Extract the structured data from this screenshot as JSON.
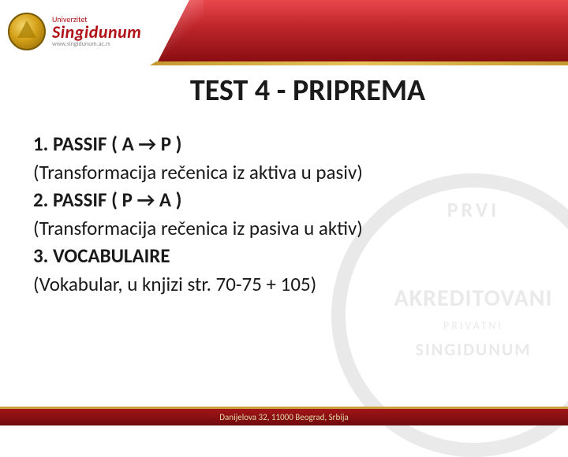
{
  "header": {
    "logo": {
      "university_label": "Univerzitet",
      "name": "Singidunum",
      "url": "www.singidunum.ac.rs"
    }
  },
  "title": "TEST 4 - PRIPREMA",
  "content": {
    "lines": [
      {
        "text": "1. PASSIF  ( A → P )",
        "bold": true
      },
      {
        "text": "(Transformacija rečenica iz aktiva u pasiv)",
        "bold": false
      },
      {
        "text": "2. PASSIF  ( P → A )",
        "bold": true
      },
      {
        "text": "(Transformacija rečenica iz pasiva u aktiv)",
        "bold": false
      },
      {
        "text": "3. VOCABULAIRE",
        "bold": true
      },
      {
        "text": "(Vokabular, u knjizi str. 70-75 + 105)",
        "bold": false
      }
    ]
  },
  "watermark": {
    "line1": "PRVI",
    "line2": "AKREDITOVANI",
    "line3": "PRIVATNI",
    "line4": "SINGIDUNUM"
  },
  "footer": {
    "text": "Danijelova 32, 11000 Beograd, Srbija"
  },
  "colors": {
    "red_grad_top": "#e8474c",
    "red_grad_mid": "#c1272d",
    "red_grad_bot": "#8a0e12",
    "gold": "#caa13a",
    "text": "#1a1a1a",
    "watermark": "#555555",
    "bg": "#ffffff"
  },
  "typography": {
    "title_size_pt": 28,
    "body_size_pt": 19,
    "font_family": "Calibri"
  }
}
